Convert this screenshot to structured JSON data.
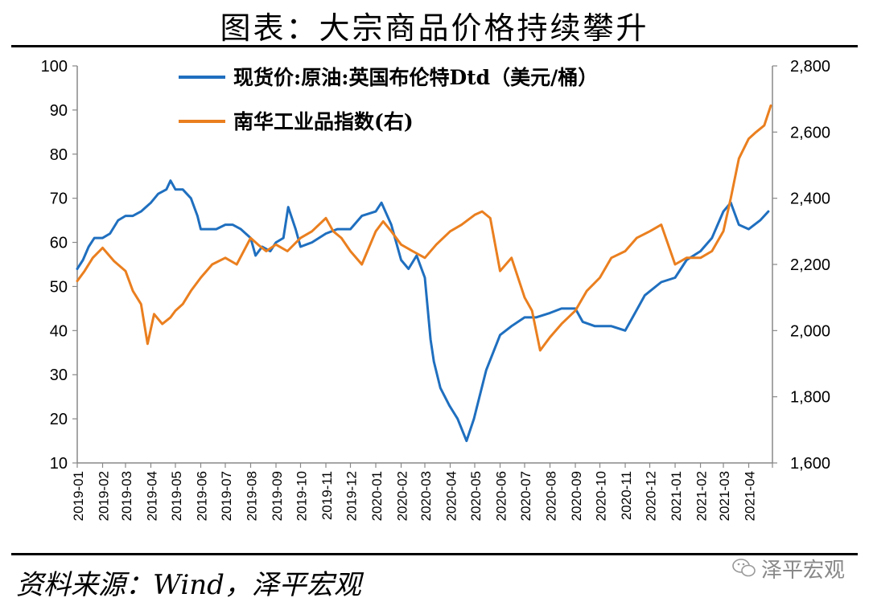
{
  "header": {
    "title": "图表：大宗商品价格持续攀升"
  },
  "footer": {
    "source": "资料来源：Wind，泽平宏观",
    "watermark": "泽平宏观",
    "watermark_icon": "wechat-icon"
  },
  "chart_data": {
    "type": "line",
    "title": "",
    "xlabel": "",
    "ylabel": "",
    "y_left_lim": [
      10,
      100
    ],
    "y_left_ticks": [
      10,
      20,
      30,
      40,
      50,
      60,
      70,
      80,
      90,
      100
    ],
    "y_right_lim": [
      1600,
      2800
    ],
    "y_right_ticks": [
      "1,600",
      "1,800",
      "2,000",
      "2,200",
      "2,400",
      "2,600",
      "2,800"
    ],
    "y_right_tick_values": [
      1600,
      1800,
      2000,
      2200,
      2400,
      2600,
      2800
    ],
    "x_tick_labels": [
      "2019-01",
      "2019-02",
      "2019-03",
      "2019-04",
      "2019-05",
      "2019-06",
      "2019-07",
      "2019-08",
      "2019-09",
      "2019-10",
      "2019-11",
      "2019-12",
      "2020-01",
      "2020-02",
      "2020-03",
      "2020-04",
      "2020-05",
      "2020-06",
      "2020-07",
      "2020-08",
      "2020-09",
      "2020-10",
      "2020-11",
      "2020-12",
      "2021-01",
      "2021-02",
      "2021-03",
      "2021-04"
    ],
    "grid": false,
    "legend_position": "top-left",
    "series": [
      {
        "name": "现货价:原油:英国布伦特Dtd（美元/桶）",
        "axis": "left",
        "color": "#1f6fbf",
        "x": [
          "2019-01-01",
          "2019-01-08",
          "2019-01-15",
          "2019-01-22",
          "2019-02-01",
          "2019-02-10",
          "2019-02-20",
          "2019-03-01",
          "2019-03-10",
          "2019-03-20",
          "2019-04-01",
          "2019-04-10",
          "2019-04-20",
          "2019-04-25",
          "2019-05-01",
          "2019-05-10",
          "2019-05-20",
          "2019-05-28",
          "2019-06-01",
          "2019-06-10",
          "2019-06-20",
          "2019-07-01",
          "2019-07-10",
          "2019-07-20",
          "2019-08-01",
          "2019-08-07",
          "2019-08-15",
          "2019-08-25",
          "2019-09-01",
          "2019-09-10",
          "2019-09-16",
          "2019-09-25",
          "2019-10-01",
          "2019-10-15",
          "2019-11-01",
          "2019-11-15",
          "2019-12-01",
          "2019-12-15",
          "2020-01-01",
          "2020-01-08",
          "2020-01-20",
          "2020-02-01",
          "2020-02-10",
          "2020-02-20",
          "2020-03-01",
          "2020-03-08",
          "2020-03-12",
          "2020-03-20",
          "2020-03-31",
          "2020-04-10",
          "2020-04-21",
          "2020-04-30",
          "2020-05-15",
          "2020-06-01",
          "2020-06-15",
          "2020-07-01",
          "2020-07-15",
          "2020-08-01",
          "2020-08-15",
          "2020-09-01",
          "2020-09-10",
          "2020-09-25",
          "2020-10-15",
          "2020-11-01",
          "2020-11-10",
          "2020-11-25",
          "2020-12-15",
          "2021-01-01",
          "2021-01-15",
          "2021-02-01",
          "2021-02-15",
          "2021-03-01",
          "2021-03-10",
          "2021-03-20",
          "2021-04-01",
          "2021-04-15",
          "2021-04-25"
        ],
        "values": [
          54,
          56,
          59,
          61,
          61,
          62,
          65,
          66,
          66,
          67,
          69,
          71,
          72,
          74,
          72,
          72,
          70,
          66,
          63,
          63,
          63,
          64,
          64,
          63,
          61,
          57,
          59,
          58,
          60,
          61,
          68,
          63,
          59,
          60,
          62,
          63,
          63,
          66,
          67,
          69,
          64,
          56,
          54,
          57,
          52,
          38,
          33,
          27,
          23,
          20,
          15,
          20,
          31,
          39,
          41,
          43,
          43,
          44,
          45,
          45,
          42,
          41,
          41,
          40,
          43,
          48,
          51,
          52,
          56,
          58,
          61,
          67,
          69,
          64,
          63,
          65,
          67
        ]
      },
      {
        "name": "南华工业品指数(右)",
        "axis": "right",
        "color": "#ea7f1f",
        "x": [
          "2019-01-01",
          "2019-01-10",
          "2019-01-20",
          "2019-02-01",
          "2019-02-15",
          "2019-03-01",
          "2019-03-10",
          "2019-03-20",
          "2019-03-28",
          "2019-04-05",
          "2019-04-15",
          "2019-04-25",
          "2019-05-01",
          "2019-05-10",
          "2019-05-20",
          "2019-06-01",
          "2019-06-15",
          "2019-07-01",
          "2019-07-15",
          "2019-08-01",
          "2019-08-10",
          "2019-08-20",
          "2019-09-01",
          "2019-09-15",
          "2019-10-01",
          "2019-10-15",
          "2019-11-01",
          "2019-11-10",
          "2019-11-20",
          "2019-12-01",
          "2019-12-15",
          "2020-01-01",
          "2020-01-10",
          "2020-01-20",
          "2020-02-01",
          "2020-02-15",
          "2020-03-01",
          "2020-03-15",
          "2020-04-01",
          "2020-04-15",
          "2020-05-01",
          "2020-05-10",
          "2020-05-20",
          "2020-06-01",
          "2020-06-15",
          "2020-07-01",
          "2020-07-10",
          "2020-07-20",
          "2020-08-01",
          "2020-08-15",
          "2020-09-01",
          "2020-09-15",
          "2020-10-01",
          "2020-10-15",
          "2020-11-01",
          "2020-11-15",
          "2020-12-01",
          "2020-12-15",
          "2021-01-01",
          "2021-01-15",
          "2021-02-01",
          "2021-02-15",
          "2021-03-01",
          "2021-03-10",
          "2021-03-20",
          "2021-04-01",
          "2021-04-10",
          "2021-04-20",
          "2021-04-28"
        ],
        "values": [
          2150,
          2180,
          2220,
          2250,
          2210,
          2180,
          2120,
          2080,
          1960,
          2050,
          2020,
          2040,
          2060,
          2080,
          2120,
          2160,
          2200,
          2220,
          2200,
          2280,
          2260,
          2240,
          2260,
          2240,
          2280,
          2300,
          2340,
          2300,
          2280,
          2240,
          2200,
          2300,
          2330,
          2300,
          2260,
          2240,
          2220,
          2260,
          2300,
          2320,
          2350,
          2360,
          2340,
          2180,
          2220,
          2100,
          2060,
          1940,
          1980,
          2020,
          2060,
          2120,
          2160,
          2220,
          2240,
          2280,
          2300,
          2320,
          2200,
          2220,
          2220,
          2240,
          2300,
          2400,
          2520,
          2580,
          2600,
          2620,
          2680
        ]
      }
    ]
  }
}
